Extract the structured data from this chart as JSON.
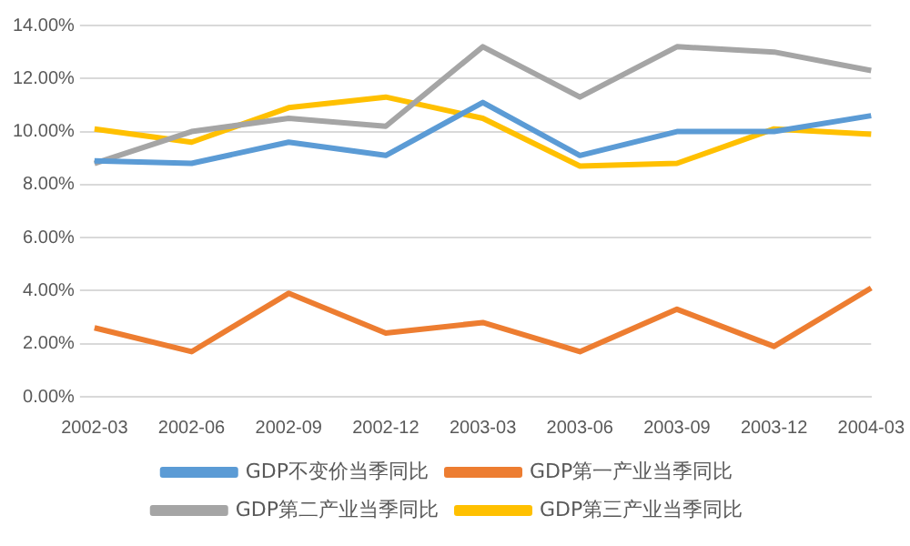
{
  "chart_data": {
    "type": "line",
    "categories": [
      "2002-03",
      "2002-06",
      "2002-09",
      "2002-12",
      "2003-03",
      "2003-06",
      "2003-09",
      "2003-12",
      "2004-03"
    ],
    "series": [
      {
        "name": "GDP不变价当季同比",
        "color": "#5b9bd5",
        "values": [
          8.9,
          8.8,
          9.6,
          9.1,
          11.1,
          9.1,
          10.0,
          10.0,
          10.6
        ]
      },
      {
        "name": "GDP第一产业当季同比",
        "color": "#ed7d31",
        "values": [
          2.6,
          1.7,
          3.9,
          2.4,
          2.8,
          1.7,
          3.3,
          1.9,
          4.1
        ]
      },
      {
        "name": "GDP第二产业当季同比",
        "color": "#a5a5a5",
        "values": [
          8.8,
          10.0,
          10.5,
          10.2,
          13.2,
          11.3,
          13.2,
          13.0,
          12.3
        ]
      },
      {
        "name": "GDP第三产业当季同比",
        "color": "#ffc000",
        "values": [
          10.1,
          9.6,
          10.9,
          11.3,
          10.5,
          8.7,
          8.8,
          10.1,
          9.9
        ]
      }
    ],
    "ylim": [
      0,
      14
    ],
    "yticks": [
      {
        "value": 0,
        "label": "0.00%"
      },
      {
        "value": 2,
        "label": "2.00%"
      },
      {
        "value": 4,
        "label": "4.00%"
      },
      {
        "value": 6,
        "label": "6.00%"
      },
      {
        "value": 8,
        "label": "8.00%"
      },
      {
        "value": 10,
        "label": "10.00%"
      },
      {
        "value": 12,
        "label": "12.00%"
      },
      {
        "value": 14,
        "label": "14.00%"
      }
    ],
    "grid": "y",
    "legend": "bottom",
    "marker": "none",
    "line_style": "solid"
  }
}
